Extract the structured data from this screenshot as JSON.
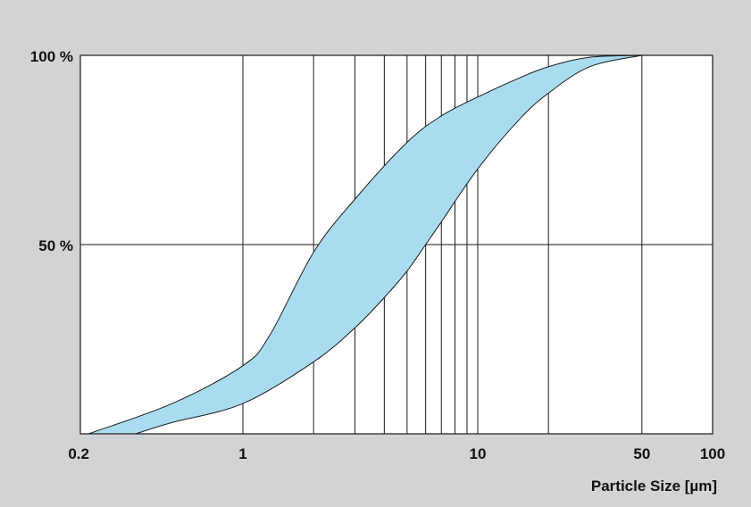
{
  "chart_data": {
    "type": "area",
    "xlabel": "Particle Size [µm]",
    "ylabel": "",
    "x_scale": "log",
    "xlim": [
      0.2,
      100
    ],
    "ylim": [
      0,
      100
    ],
    "x_ticks": [
      {
        "value": 0.2,
        "label": "0.2"
      },
      {
        "value": 1,
        "label": "1"
      },
      {
        "value": 10,
        "label": "10"
      },
      {
        "value": 50,
        "label": "50"
      },
      {
        "value": 100,
        "label": "100"
      }
    ],
    "y_ticks": [
      {
        "value": 50,
        "label": "50 %"
      },
      {
        "value": 100,
        "label": "100 %"
      }
    ],
    "x_gridlines": [
      1,
      2,
      3,
      4,
      5,
      6,
      7,
      8,
      9,
      10,
      20,
      50
    ],
    "y_gridlines": [
      50
    ],
    "band": {
      "upper": {
        "x": [
          0.22,
          0.5,
          1,
          1.3,
          2,
          3,
          5,
          7,
          10,
          15,
          20,
          30,
          50
        ],
        "y": [
          0,
          8,
          18,
          26,
          48,
          62,
          77,
          84,
          89,
          94,
          97,
          99.5,
          100
        ]
      },
      "lower": {
        "x": [
          0.35,
          0.5,
          1,
          2,
          3,
          4,
          5,
          6,
          7,
          10,
          15,
          20,
          30,
          50
        ],
        "y": [
          0,
          3,
          8,
          19,
          28,
          36,
          43,
          50,
          56,
          70,
          83,
          90,
          97,
          100
        ]
      }
    },
    "colors": {
      "band_fill": "#aadcf1",
      "band_stroke": "#1a1a1a",
      "plot_bg": "#ffffff",
      "page_bg": "#d2d3d5",
      "grid": "#1a1a1a"
    },
    "grid": true,
    "legend": "none"
  }
}
